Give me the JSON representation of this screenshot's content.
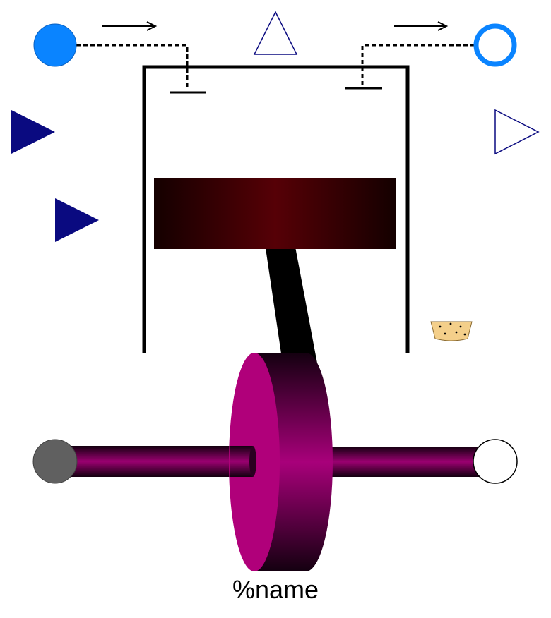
{
  "component": {
    "name_label": "%name"
  },
  "ports": {
    "fluid_inlet": {
      "icon": "filled-circle-port",
      "color": "#0a84ff"
    },
    "fluid_outlet": {
      "icon": "hollow-circle-port",
      "color": "#0a84ff"
    },
    "input_signal_1": {
      "icon": "filled-triangle-input",
      "color": "#0a0a80"
    },
    "input_signal_2": {
      "icon": "filled-triangle-input",
      "color": "#0a0a80"
    },
    "output_signal_top": {
      "icon": "hollow-triangle-output",
      "color": "#0a0a80"
    },
    "output_signal_right": {
      "icon": "hollow-triangle-output",
      "color": "#0a0a80"
    },
    "shaft_left_flange": {
      "icon": "filled-circle-flange",
      "color": "#606060"
    },
    "shaft_right_flange": {
      "icon": "hollow-circle-flange",
      "color": "#ffffff"
    }
  },
  "colors": {
    "piston_dark": "#140000",
    "piston_mid": "#560006",
    "crank_face": "#b0007a",
    "crank_dark": "#140010",
    "shaft_mid": "#9a0070",
    "rod": "#000000",
    "heat_badge": "#f4cf8a"
  }
}
